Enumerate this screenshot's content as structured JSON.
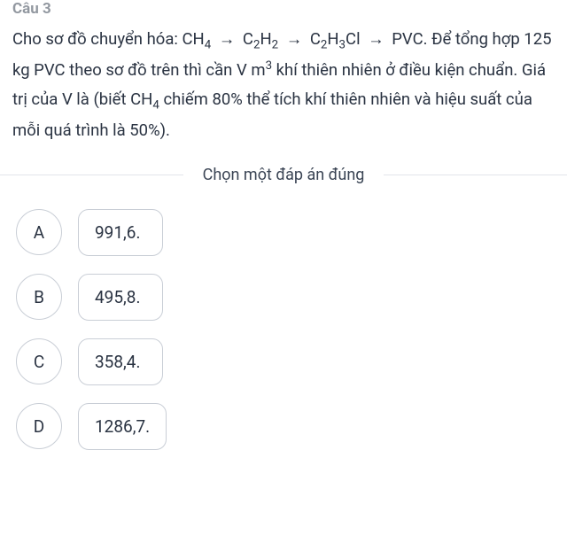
{
  "question": {
    "number_label": "Câu 3",
    "body_pre": "Cho sơ đồ chuyển hóa: ",
    "formula": {
      "t1": "CH",
      "s1": "4",
      "arr": " → ",
      "t2": "C",
      "s2a": "2",
      "t2b": "H",
      "s2b": "2",
      "t3": "C",
      "s3a": "2",
      "t3b": "H",
      "s3b": "3",
      "t3c": "Cl",
      "t4": " PVC."
    },
    "body_mid1": "Để tổng hợp 125 kg PVC theo sơ đồ trên thì cần V m",
    "sup3": "3",
    "body_mid2": " khí thiên nhiên ở điều kiện chuẩn. Giá trị của V là (biết CH",
    "sub4": "4",
    "body_end": " chiếm 80% thể tích khí thiên nhiên và hiệu suất của mỗi quá trình là 50%)."
  },
  "divider_label": "Chọn một đáp án đúng",
  "options": [
    {
      "letter": "A",
      "value": "991,6."
    },
    {
      "letter": "B",
      "value": "495,8."
    },
    {
      "letter": "C",
      "value": "358,4."
    },
    {
      "letter": "D",
      "value": "1286,7."
    }
  ],
  "colors": {
    "text": "#2a3342",
    "muted": "#3a4454",
    "border": "#c9ced6",
    "divider": "#e2e5ea",
    "background": "#ffffff"
  }
}
